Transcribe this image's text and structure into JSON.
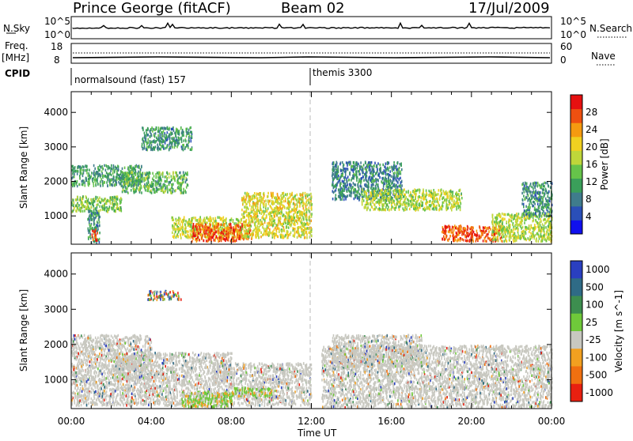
{
  "header": {
    "station": "Prince George (fitACF)",
    "beam": "Beam 02",
    "date": "17/Jul/2009"
  },
  "noise_panel": {
    "left_label": "N.Sky",
    "left_ticks": [
      "10^5",
      "10^0"
    ],
    "right_ticks": [
      "10^5",
      "10^0"
    ],
    "right_label": "N.Search"
  },
  "freq_panel": {
    "left_label_1": "Freq.",
    "left_label_2": "[MHz]",
    "left_ticks": [
      "18",
      "8"
    ],
    "right_ticks": [
      "60",
      "0"
    ],
    "right_label": "Nave"
  },
  "cpid_panel": {
    "label": "CPID",
    "modes": [
      {
        "name": "normalsound (fast) 157",
        "start_hour": 0
      },
      {
        "name": "themis 3300",
        "start_hour": 12
      }
    ]
  },
  "chart_data": [
    {
      "type": "heatmap",
      "panel": "power",
      "xlabel": "",
      "ylabel": "Slant Range [km]",
      "xlim": [
        0,
        24
      ],
      "ylim": [
        180,
        4600
      ],
      "yticks": [
        1000,
        2000,
        3000,
        4000
      ],
      "colorbar": {
        "label": "Power [dB]",
        "range": [
          0,
          32
        ],
        "ticks": [
          4,
          8,
          12,
          16,
          20,
          24,
          28
        ],
        "colors": [
          "#1010ee",
          "#2a4fb8",
          "#3f7c8c",
          "#3a9f5a",
          "#66c34a",
          "#bfd63a",
          "#f0d020",
          "#f59a10",
          "#ee5010",
          "#e61010"
        ]
      },
      "regions": [
        {
          "t0": 0.0,
          "t1": 3.5,
          "r0": 1900,
          "r1": 2500,
          "value": 11
        },
        {
          "t0": 0.0,
          "t1": 2.5,
          "r0": 1150,
          "r1": 1600,
          "value": 15
        },
        {
          "t0": 0.8,
          "t1": 1.4,
          "r0": 250,
          "r1": 1200,
          "value": 10
        },
        {
          "t0": 1.0,
          "t1": 1.3,
          "r0": 300,
          "r1": 650,
          "value": 26
        },
        {
          "t0": 2.5,
          "t1": 5.8,
          "r0": 1700,
          "r1": 2300,
          "value": 13
        },
        {
          "t0": 3.5,
          "t1": 6.0,
          "r0": 2950,
          "r1": 3600,
          "value": 10
        },
        {
          "t0": 5.0,
          "t1": 8.5,
          "r0": 400,
          "r1": 1000,
          "value": 18
        },
        {
          "t0": 6.0,
          "t1": 9.0,
          "r0": 300,
          "r1": 800,
          "value": 27
        },
        {
          "t0": 8.5,
          "t1": 12.0,
          "r0": 400,
          "r1": 1700,
          "value": 19
        },
        {
          "t0": 13.0,
          "t1": 16.5,
          "r0": 1500,
          "r1": 2600,
          "value": 9
        },
        {
          "t0": 14.5,
          "t1": 19.5,
          "r0": 1200,
          "r1": 1800,
          "value": 17
        },
        {
          "t0": 18.5,
          "t1": 21.5,
          "r0": 300,
          "r1": 750,
          "value": 27
        },
        {
          "t0": 21.0,
          "t1": 24.0,
          "r0": 300,
          "r1": 1100,
          "value": 17
        },
        {
          "t0": 22.5,
          "t1": 24.0,
          "r0": 1000,
          "r1": 2000,
          "value": 10
        }
      ]
    },
    {
      "type": "heatmap",
      "panel": "velocity",
      "xlabel": "Time UT",
      "ylabel": "Slant Range [km]",
      "xlim": [
        0,
        24
      ],
      "ylim": [
        180,
        4600
      ],
      "yticks": [
        1000,
        2000,
        3000,
        4000
      ],
      "xticks": [
        "00:00",
        "04:00",
        "08:00",
        "12:00",
        "16:00",
        "20:00",
        "00:00"
      ],
      "colorbar": {
        "label": "Velocity [m s^-1]",
        "ticks": [
          "1000",
          "500",
          "100",
          "25",
          "-25",
          "-100",
          "-500",
          "-1000"
        ],
        "colors": [
          "#2a3fc0",
          "#2f6b86",
          "#3d8e4f",
          "#6fc93a",
          "#c8c8c0",
          "#f2a020",
          "#f07010",
          "#e82010"
        ]
      },
      "regions": [
        {
          "t0": 0.0,
          "t1": 4.0,
          "r0": 1000,
          "r1": 2300,
          "value": "ground"
        },
        {
          "t0": 2.0,
          "t1": 8.0,
          "r0": 1000,
          "r1": 1800,
          "value": "ground"
        },
        {
          "t0": 0.0,
          "t1": 12.0,
          "r0": 300,
          "r1": 1000,
          "value": "ground"
        },
        {
          "t0": 7.0,
          "t1": 12.0,
          "r0": 1000,
          "r1": 1500,
          "value": "ground"
        },
        {
          "t0": 5.5,
          "t1": 8.0,
          "r0": 250,
          "r1": 700,
          "value": "low"
        },
        {
          "t0": 8.0,
          "t1": 10.0,
          "r0": 550,
          "r1": 800,
          "value": "low"
        },
        {
          "t0": 3.8,
          "t1": 5.5,
          "r0": 3300,
          "r1": 3550,
          "value": "mixed"
        },
        {
          "t0": 12.5,
          "t1": 24.0,
          "r0": 250,
          "r1": 2000,
          "value": "ground"
        },
        {
          "t0": 13.0,
          "t1": 17.5,
          "r0": 1400,
          "r1": 2300,
          "value": "ground"
        }
      ]
    }
  ],
  "colors": {
    "frame": "#000000",
    "ground_scatter": "#c8c8c0",
    "divider": "#bbbbbb"
  }
}
